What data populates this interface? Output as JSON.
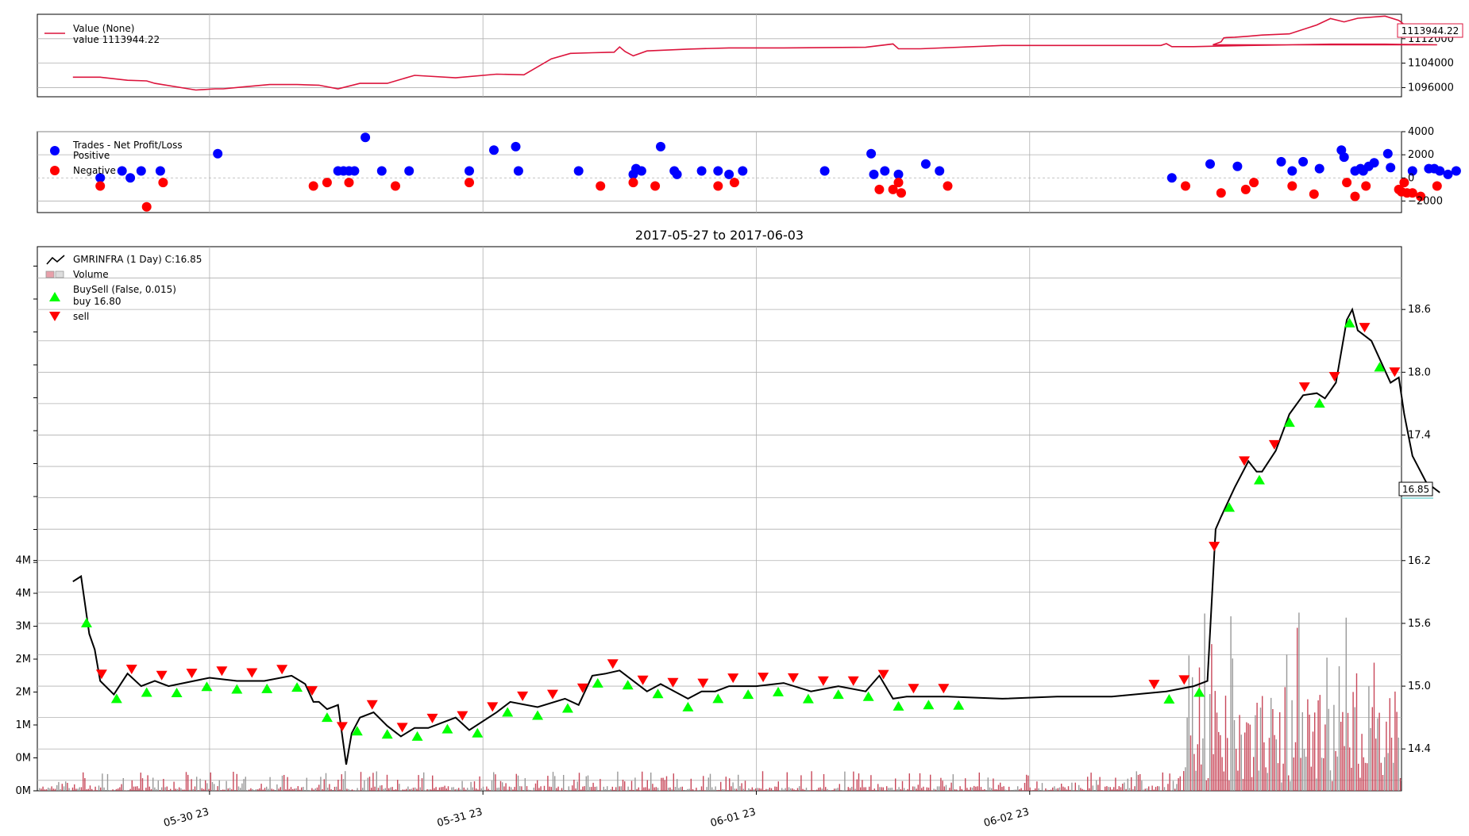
{
  "chart_data": [
    {
      "panel": "value",
      "type": "line",
      "legend": {
        "placement": "top-left",
        "entries": [
          "Value (None)",
          "value 1113944.22"
        ]
      },
      "y_ticks": [
        "1096000",
        "1104000",
        "1112000"
      ],
      "ylim": [
        1093000,
        1120000
      ],
      "last_value_label": "1113944.22",
      "colors": {
        "line": "#dc143c"
      },
      "series": [
        {
          "name": "Value (None)",
          "x": [
            0.0,
            0.1,
            0.2,
            0.27,
            0.3,
            0.45,
            0.52,
            0.55,
            0.62,
            0.72,
            0.82,
            0.9,
            0.97,
            1.05,
            1.15,
            1.25,
            1.4,
            1.55,
            1.65,
            1.75,
            1.82,
            1.9,
            1.98,
            2.0,
            2.02,
            2.05,
            2.1,
            2.25,
            2.4,
            2.6,
            2.9,
            3.0,
            3.02,
            3.1,
            3.4,
            3.6,
            3.8,
            3.98,
            4.0,
            4.02,
            4.1,
            4.3,
            4.6,
            4.8,
            4.99,
            4.17,
            4.2,
            4.21,
            4.22,
            4.25,
            4.3,
            4.35,
            4.45,
            4.55,
            4.6,
            4.65,
            4.7,
            4.8,
            4.85,
            4.9,
            4.95,
            5.0
          ],
          "values": [
            1099400,
            1099400,
            1098400,
            1098200,
            1097400,
            1095200,
            1095600,
            1095600,
            1096200,
            1097000,
            1097000,
            1096800,
            1095600,
            1097400,
            1097400,
            1100000,
            1099200,
            1100400,
            1100200,
            1105400,
            1107200,
            1107400,
            1107600,
            1109300,
            1107800,
            1106400,
            1108000,
            1108600,
            1109000,
            1109000,
            1109200,
            1110300,
            1108700,
            1108700,
            1109800,
            1109800,
            1109800,
            1109800,
            1110400,
            1109400,
            1109400,
            1109800,
            1110200,
            1110200,
            1110000,
            1110000,
            1111000,
            1112300,
            1112400,
            1112500,
            1112800,
            1113200,
            1113600,
            1116500,
            1118600,
            1117500,
            1118700,
            1119400,
            1118000,
            1114600,
            1113800,
            1113944
          ]
        }
      ]
    },
    {
      "panel": "trades",
      "type": "scatter",
      "legend": {
        "placement": "top-left",
        "title": "Trades - Net Profit/Loss",
        "entries": [
          "Positive",
          "Negative"
        ]
      },
      "y_ticks": [
        "4000",
        "2000",
        "0",
        "−2000"
      ],
      "ylim": [
        -3000,
        4000
      ],
      "colors": {
        "positive": "#0000ff",
        "negative": "#ff0000"
      },
      "series": [
        {
          "name": "Positive",
          "x": [
            0.1,
            0.18,
            0.21,
            0.25,
            0.32,
            0.53,
            0.97,
            0.99,
            1.01,
            1.03,
            1.07,
            1.13,
            1.23,
            1.45,
            1.54,
            1.62,
            1.63,
            1.85,
            2.05,
            2.06,
            2.08,
            2.15,
            2.2,
            2.21,
            2.3,
            2.36,
            2.4,
            2.45,
            2.75,
            2.92,
            2.93,
            2.97,
            3.02,
            3.12,
            3.17,
            4.02,
            4.16,
            4.26,
            4.42,
            4.46,
            4.5,
            4.56,
            4.64,
            4.65,
            4.69,
            4.71,
            4.72,
            4.74,
            4.76,
            4.81,
            4.82,
            4.9,
            4.96,
            4.98,
            5.0,
            5.03,
            5.06
          ],
          "values": [
            0,
            600,
            0,
            600,
            600,
            2100,
            600,
            600,
            600,
            600,
            3500,
            600,
            600,
            600,
            2400,
            2700,
            600,
            600,
            300,
            800,
            600,
            2700,
            600,
            300,
            600,
            600,
            300,
            600,
            600,
            2100,
            300,
            600,
            300,
            1200,
            600,
            0,
            1200,
            1000,
            1400,
            600,
            1400,
            800,
            2400,
            1800,
            600,
            800,
            600,
            1000,
            1300,
            2100,
            900,
            600,
            800,
            800,
            600,
            300,
            600
          ]
        },
        {
          "name": "Negative",
          "x": [
            0.1,
            0.27,
            0.33,
            0.88,
            0.93,
            1.01,
            1.18,
            1.45,
            1.93,
            2.05,
            2.13,
            2.36,
            2.42,
            2.95,
            3.0,
            3.02,
            3.03,
            3.2,
            4.07,
            4.2,
            4.29,
            4.32,
            4.46,
            4.54,
            4.66,
            4.69,
            4.73,
            4.85,
            4.86,
            4.87,
            4.88,
            4.9,
            4.93,
            4.99
          ],
          "values": [
            -700,
            -2500,
            -400,
            -700,
            -400,
            -400,
            -700,
            -400,
            -700,
            -400,
            -700,
            -700,
            -400,
            -1000,
            -1000,
            -400,
            -1300,
            -700,
            -700,
            -1300,
            -1000,
            -400,
            -700,
            -1400,
            -400,
            -1600,
            -700,
            -1000,
            -1200,
            -400,
            -1300,
            -1300,
            -1600,
            -700
          ]
        }
      ]
    },
    {
      "panel": "price",
      "type": "line",
      "title": "2017-05-27 to 2017-06-03",
      "legend": {
        "placement": "top-left",
        "entries": [
          "GMRINFRA (1 Day) C:16.85",
          "Volume",
          "BuySell (False, 0.015)",
          "buy 16.80",
          "sell"
        ]
      },
      "x_ticks": [
        "05-30 23",
        "05-31 23",
        "06-01 23",
        "06-02 23"
      ],
      "y_ticks_right": [
        "14.4",
        "15.0",
        "15.6",
        "16.2",
        "17.4",
        "18.0",
        "18.6"
      ],
      "ylim_right": [
        14.0,
        19.2
      ],
      "y_ticks_left": [
        "0M",
        "0M",
        "1M",
        "2M",
        "2M",
        "3M",
        "4M",
        "4M"
      ],
      "last_price_label": "16.85",
      "colors": {
        "price": "#000000",
        "buy": "#00ff00",
        "sell": "#ff0000",
        "volume_up": "#c8485a",
        "volume_down": "#999999"
      },
      "series": [
        {
          "name": "GMRINFRA (1 Day) C:16.85",
          "x": [
            0.0,
            0.03,
            0.06,
            0.08,
            0.1,
            0.15,
            0.2,
            0.25,
            0.3,
            0.35,
            0.5,
            0.6,
            0.7,
            0.8,
            0.85,
            0.88,
            0.9,
            0.93,
            0.97,
            1.0,
            1.02,
            1.05,
            1.1,
            1.15,
            1.2,
            1.25,
            1.3,
            1.4,
            1.45,
            1.55,
            1.6,
            1.7,
            1.8,
            1.85,
            1.9,
            1.95,
            2.0,
            2.1,
            2.15,
            2.25,
            2.3,
            2.35,
            2.4,
            2.5,
            2.6,
            2.7,
            2.8,
            2.9,
            2.95,
            3.0,
            3.05,
            3.2,
            3.4,
            3.6,
            3.8,
            4.0,
            4.1,
            4.15,
            4.18,
            4.2,
            4.25,
            4.3,
            4.33,
            4.35,
            4.4,
            4.45,
            4.5,
            4.55,
            4.58,
            4.62,
            4.66,
            4.68,
            4.7,
            4.75,
            4.82,
            4.85,
            4.87,
            4.9,
            4.95,
            5.0
          ],
          "values": [
            16.0,
            16.05,
            15.5,
            15.35,
            15.05,
            14.92,
            15.12,
            15.0,
            15.05,
            15.0,
            15.08,
            15.05,
            15.05,
            15.1,
            15.02,
            14.85,
            14.85,
            14.78,
            14.82,
            14.25,
            14.55,
            14.7,
            14.75,
            14.62,
            14.52,
            14.6,
            14.6,
            14.7,
            14.58,
            14.75,
            14.85,
            14.8,
            14.88,
            14.82,
            15.1,
            15.12,
            15.15,
            14.95,
            15.02,
            14.88,
            14.95,
            14.95,
            15.0,
            15.0,
            15.03,
            14.95,
            15.0,
            14.95,
            15.1,
            14.88,
            14.9,
            14.9,
            14.88,
            14.9,
            14.9,
            14.95,
            15.0,
            15.05,
            16.5,
            16.62,
            16.9,
            17.15,
            17.05,
            17.05,
            17.25,
            17.6,
            17.78,
            17.8,
            17.75,
            17.9,
            18.5,
            18.6,
            18.4,
            18.3,
            17.9,
            17.95,
            17.6,
            17.2,
            16.95,
            16.85
          ]
        }
      ]
    }
  ]
}
